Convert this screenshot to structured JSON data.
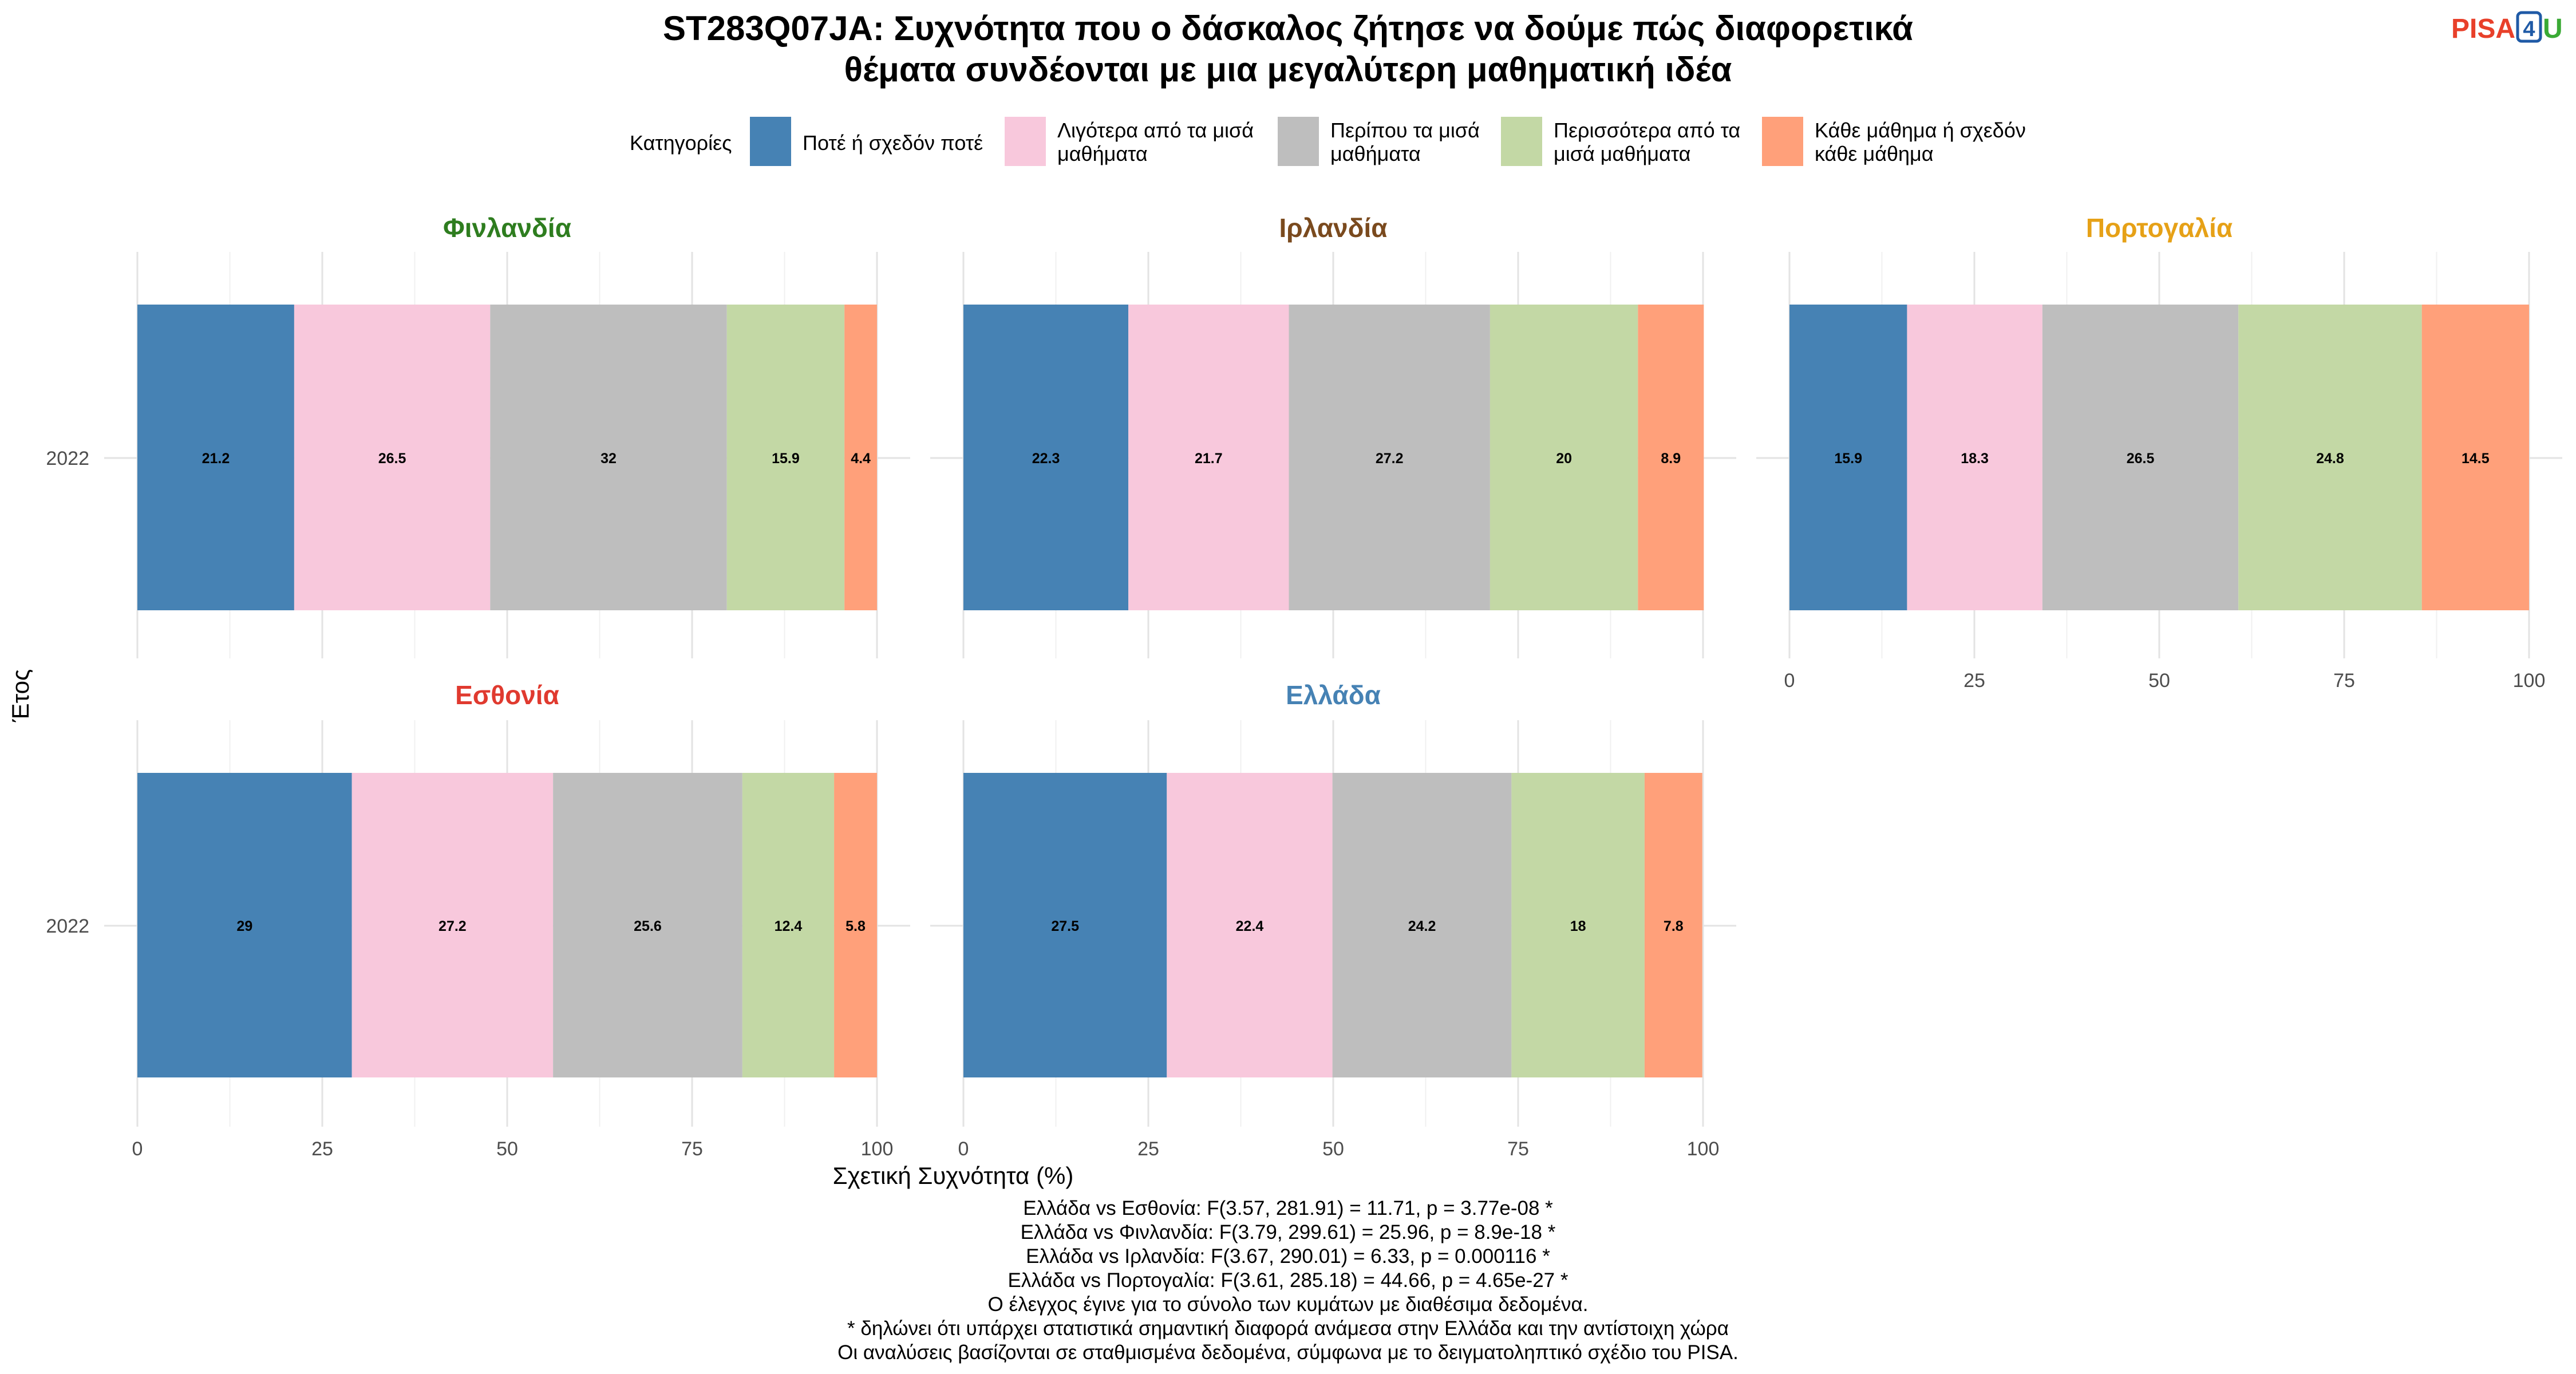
{
  "title_line1": "ST283Q07JA: Συχνότητα που ο δάσκαλος ζήτησε να δούμε πώς διαφορετικά",
  "title_line2": "θέματα συνδέονται με μια μεγαλύτερη μαθηματική ιδέα",
  "logo": {
    "text": "PISA",
    "number": "4",
    "letter": "U",
    "colors": {
      "pisa": "#e8402a",
      "box": "#1f5aa6",
      "u": "#3aaa35"
    }
  },
  "legend": {
    "title": "Κατηγορίες",
    "items": [
      {
        "lines": [
          "Ποτέ ή σχεδόν ποτέ"
        ],
        "color": "#4682b4"
      },
      {
        "lines": [
          "Λιγότερα από τα μισά",
          "μαθήματα"
        ],
        "color": "#f8c8dc"
      },
      {
        "lines": [
          "Περίπου τα μισά",
          "μαθήματα"
        ],
        "color": "#bebebe"
      },
      {
        "lines": [
          "Περισσότερα από τα",
          "μισά μαθήματα"
        ],
        "color": "#c3d8a5"
      },
      {
        "lines": [
          "Κάθε μάθημα ή σχεδόν",
          "κάθε μάθημα"
        ],
        "color": "#ffa07a"
      }
    ]
  },
  "chart_data": {
    "type": "bar",
    "orientation": "horizontal-stacked",
    "xlabel": "Σχετική Συχνότητα (%)",
    "ylabel": "Έτος",
    "xlim": [
      0,
      100
    ],
    "xticks": [
      "0",
      "25",
      "50",
      "75",
      "100"
    ],
    "categories": [
      "Ποτέ ή σχεδόν ποτέ",
      "Λιγότερα από τα μισά μαθήματα",
      "Περίπου τα μισά μαθήματα",
      "Περισσότερα από τα μισά μαθήματα",
      "Κάθε μάθημα ή σχεδόν κάθε μάθημα"
    ],
    "grid": true,
    "facets": [
      {
        "name": "Φινλανδία",
        "color": "#2e7d1f",
        "year": "2022",
        "values": [
          21.2,
          26.5,
          32,
          15.9,
          4.4
        ]
      },
      {
        "name": "Ιρλανδία",
        "color": "#7a4a1e",
        "year": "2022",
        "values": [
          22.3,
          21.7,
          27.2,
          20,
          8.9
        ]
      },
      {
        "name": "Πορτογαλία",
        "color": "#e6a117",
        "year": "2022",
        "values": [
          15.9,
          18.3,
          26.5,
          24.8,
          14.5
        ]
      },
      {
        "name": "Εσθονία",
        "color": "#e03a2f",
        "year": "2022",
        "values": [
          29,
          27.2,
          25.6,
          12.4,
          5.8
        ]
      },
      {
        "name": "Ελλάδα",
        "color": "#4682b4",
        "year": "2022",
        "values": [
          27.5,
          22.4,
          24.2,
          18,
          7.8
        ]
      }
    ]
  },
  "footer": [
    "Ελλάδα vs Εσθονία: F(3.57, 281.91) = 11.71, p = 3.77e-08 *",
    "Ελλάδα vs Φινλανδία: F(3.79, 299.61) = 25.96, p = 8.9e-18 *",
    "Ελλάδα vs Ιρλανδία: F(3.67, 290.01) = 6.33, p = 0.000116 *",
    "Ελλάδα vs Πορτογαλία: F(3.61, 285.18) = 44.66, p = 4.65e-27 *",
    "Ο έλεγχος έγινε για το σύνολο των κυμάτων με διαθέσιμα δεδομένα.",
    "* δηλώνει ότι υπάρχει στατιστικά σημαντική διαφορά ανάμεσα στην Ελλάδα και την αντίστοιχη χώρα",
    "Οι αναλύσεις βασίζονται σε σταθμισμένα δεδομένα, σύμφωνα με το δειγματοληπτικό σχέδιο του PISA."
  ]
}
